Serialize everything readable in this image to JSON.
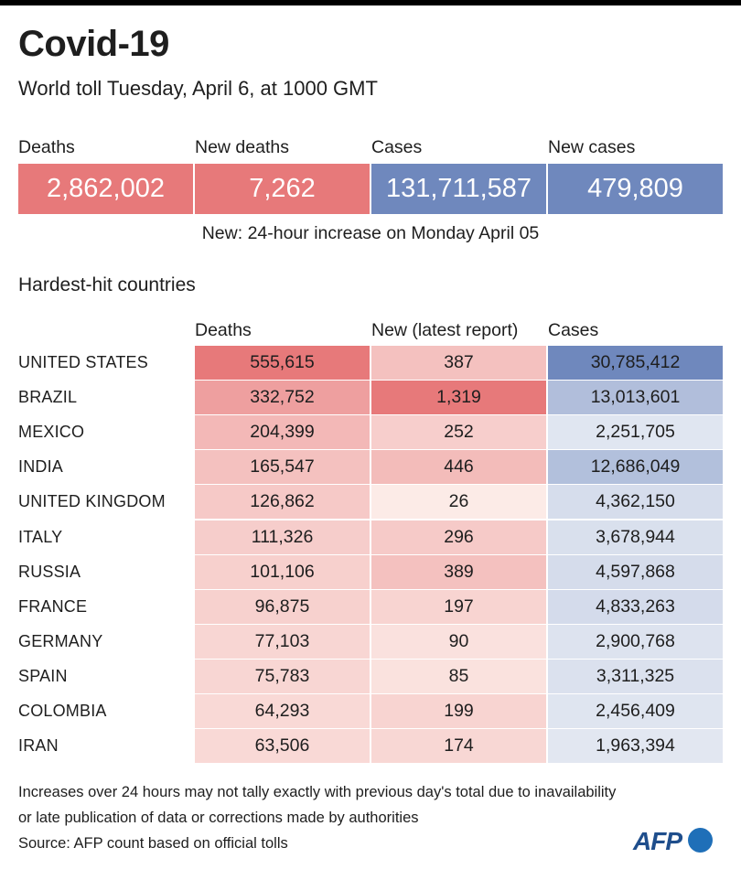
{
  "header": {
    "title": "Covid-19",
    "subtitle": "World toll Tuesday, April 6,  at 1000 GMT"
  },
  "summary": {
    "items": [
      {
        "label": "Deaths",
        "value": "2,862,002",
        "color": "#e7797a"
      },
      {
        "label": "New deaths",
        "value": "7,262",
        "color": "#e7797a"
      },
      {
        "label": "Cases",
        "value": "131,711,587",
        "color": "#6f88bd"
      },
      {
        "label": "New cases",
        "value": "479,809",
        "color": "#6f88bd"
      }
    ],
    "note": "New: 24-hour increase on Monday April 05"
  },
  "section_title": "Hardest-hit countries",
  "chart_data": {
    "type": "table",
    "columns": [
      "Deaths",
      "New (latest report)",
      "Cases"
    ],
    "rows": [
      {
        "country": "UNITED STATES",
        "deaths": 555615,
        "new": 387,
        "cases": 30785412
      },
      {
        "country": "BRAZIL",
        "deaths": 332752,
        "new": 1319,
        "cases": 13013601
      },
      {
        "country": "MEXICO",
        "deaths": 204399,
        "new": 252,
        "cases": 2251705
      },
      {
        "country": "INDIA",
        "deaths": 165547,
        "new": 446,
        "cases": 12686049
      },
      {
        "country": "UNITED KINGDOM",
        "deaths": 126862,
        "new": 26,
        "cases": 4362150
      },
      {
        "country": "ITALY",
        "deaths": 111326,
        "new": 296,
        "cases": 3678944
      },
      {
        "country": "RUSSIA",
        "deaths": 101106,
        "new": 389,
        "cases": 4597868
      },
      {
        "country": "FRANCE",
        "deaths": 96875,
        "new": 197,
        "cases": 4833263
      },
      {
        "country": "GERMANY",
        "deaths": 77103,
        "new": 90,
        "cases": 2900768
      },
      {
        "country": "SPAIN",
        "deaths": 75783,
        "new": 85,
        "cases": 3311325
      },
      {
        "country": "COLOMBIA",
        "deaths": 64293,
        "new": 199,
        "cases": 2456409
      },
      {
        "country": "IRAN",
        "deaths": 63506,
        "new": 174,
        "cases": 1963394
      }
    ],
    "colors": {
      "red_high": "#e7797a",
      "red_low": "#fdf1ed",
      "blue_high": "#6f88bd",
      "blue_low": "#eef1f7"
    }
  },
  "footer": {
    "lines": [
      "Increases over 24 hours may not tally exactly with previous day's total due to inavailability",
      "or late publication of data or corrections made by authorities",
      "Source: AFP count based on official tolls"
    ],
    "logo": "AFP"
  }
}
